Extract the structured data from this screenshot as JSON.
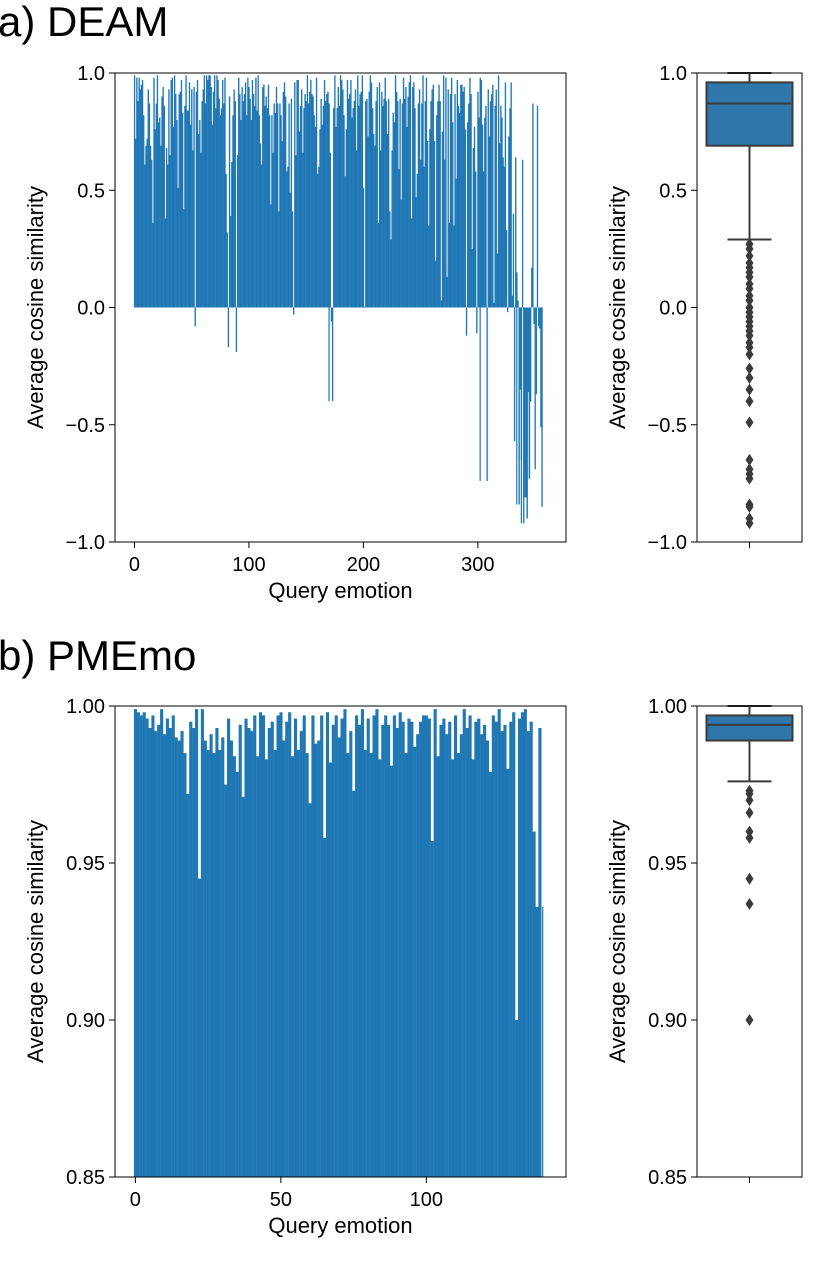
{
  "panels": {
    "a": {
      "title": "a) DEAM"
    },
    "b": {
      "title": "b) PMEmo"
    }
  },
  "colors": {
    "bar": "#1f77b4",
    "box": "#2f77ab",
    "box_line": "#3b3b3b"
  },
  "chart_data": [
    {
      "id": "deam-bar",
      "type": "bar",
      "panel": "a",
      "xlabel": "Query emotion",
      "ylabel": "Average cosine similarity",
      "xlim": [
        -17,
        377
      ],
      "ylim": [
        -1.0,
        1.0
      ],
      "xticks": [
        0,
        100,
        200,
        300
      ],
      "yticks": [
        -1.0,
        -0.5,
        0.0,
        0.5,
        1.0
      ],
      "ytick_labels": [
        "−1.0",
        "−0.5",
        "0.0",
        "0.5",
        "1.0"
      ],
      "x_start": 0,
      "values": [
        0.99,
        0.72,
        0.98,
        0.88,
        0.98,
        0.93,
        0.95,
        0.97,
        0.82,
        0.61,
        0.69,
        0.72,
        0.93,
        0.87,
        0.69,
        0.63,
        0.36,
        0.98,
        0.76,
        0.87,
        0.99,
        0.79,
        0.81,
        0.69,
        0.9,
        0.94,
        0.86,
        0.38,
        0.68,
        0.61,
        0.93,
        0.65,
        0.97,
        0.98,
        0.77,
        0.99,
        0.91,
        0.8,
        0.51,
        0.91,
        0.92,
        0.97,
        0.83,
        0.42,
        0.86,
        0.99,
        0.84,
        0.84,
        0.96,
        0.78,
        0.93,
        0.67,
        0.94,
        -0.08,
        0.92,
        0.97,
        0.74,
        0.8,
        0.66,
        0.88,
        0.93,
        0.99,
        0.87,
        0.99,
        0.97,
        0.99,
        0.99,
        0.94,
        0.78,
        0.92,
        0.99,
        0.85,
        0.99,
        0.97,
        0.89,
        0.82,
        0.85,
        0.97,
        0.87,
        0.98,
        0.57,
        0.32,
        -0.17,
        0.9,
        0.39,
        0.62,
        0.82,
        0.93,
        0.88,
        -0.19,
        0.65,
        0.98,
        0.91,
        0.8,
        0.94,
        0.88,
        0.91,
        0.96,
        0.82,
        0.98,
        0.94,
        0.89,
        0.8,
        0.97,
        0.91,
        0.86,
        0.98,
        0.84,
        0.99,
        0.82,
        0.7,
        0.61,
        0.94,
        0.95,
        0.86,
        0.9,
        0.85,
        0.95,
        0.82,
        0.44,
        0.82,
        0.66,
        0.87,
        0.83,
        0.94,
        0.87,
        0.41,
        0.87,
        0.82,
        0.71,
        0.92,
        0.96,
        0.9,
        0.58,
        0.6,
        0.87,
        0.49,
        0.89,
        0.41,
        -0.03,
        0.96,
        0.65,
        0.97,
        0.97,
        0.75,
        0.86,
        0.93,
        0.66,
        0.85,
        0.91,
        0.88,
        0.99,
        0.87,
        0.92,
        0.97,
        0.91,
        0.9,
        0.82,
        0.77,
        0.98,
        0.57,
        0.6,
        0.76,
        0.89,
        0.78,
        0.86,
        0.97,
        0.88,
        0.91,
        0.92,
        0.87,
        0.66,
        -0.06,
        -0.4,
        0.85,
        0.99,
        0.77,
        0.85,
        0.94,
        0.86,
        0.99,
        0.97,
        0.93,
        0.82,
        0.56,
        0.76,
        0.97,
        0.89,
        0.91,
        0.97,
        0.81,
        0.85,
        0.88,
        0.93,
        0.67,
        0.99,
        0.86,
        0.91,
        0.92,
        0.99,
        0.51,
        0.0,
        0.88,
        0.89,
        0.73,
        0.92,
        0.99,
        0.96,
        0.85,
        0.74,
        0.69,
        0.88,
        0.94,
        0.36,
        0.96,
        0.67,
        0.92,
        0.86,
        0.89,
        0.98,
        0.88,
        0.74,
        0.89,
        0.41,
        0.29,
        0.67,
        0.83,
        0.79,
        0.99,
        0.92,
        0.88,
        0.59,
        0.89,
        0.46,
        0.87,
        0.98,
        0.89,
        0.94,
        0.77,
        0.9,
        0.96,
        0.99,
        0.38,
        0.94,
        0.96,
        0.85,
        0.47,
        0.57,
        0.87,
        0.93,
        0.63,
        0.87,
        0.99,
        0.6,
        0.88,
        0.98,
        0.71,
        0.35,
        0.76,
        0.88,
        0.93,
        0.95,
        0.71,
        0.2,
        0.82,
        0.88,
        0.95,
        0.88,
        0.03,
        0.75,
        0.99,
        0.63,
        0.98,
        0.13,
        0.93,
        0.36,
        0.91,
        0.98,
        0.79,
        0.35,
        0.91,
        0.55,
        0.97,
        0.86,
        0.83,
        0.95,
        0.95,
        0.92,
        0.94,
        0.76,
        -0.12,
        0.79,
        0.87,
        0.98,
        0.91,
        0.25,
        0.68,
        0.77,
        0.58,
        -0.11,
        0.92,
        0.81,
        0.98,
        0.97,
        0.78,
        0.58,
        0.81,
        0.86,
        -0.74,
        0.93,
        0.73,
        0.88,
        0.91,
        0.95,
        0.02,
        0.86,
        0.93,
        0.23,
        0.99,
        0.7,
        0.86,
        0.81,
        0.64,
        0.6,
        0.96,
        0.33,
        -0.02,
        0.73,
        0.85,
        0.96,
        0.05,
        0.4,
        -0.57,
        0.64,
        0.15,
        0.03,
        -0.84,
        -0.35,
        -0.65,
        0.63,
        -0.92,
        -0.7,
        -0.81,
        -0.9,
        -0.36,
        -0.73,
        -0.4,
        0.17,
        0.87,
        -0.07,
        -0.69,
        -0.37,
        0.86,
        -0.08,
        -0.09,
        -0.51,
        -0.85
      ],
      "highlights": [
        {
          "x": 334,
          "y": -0.84
        },
        {
          "x": 336,
          "y": -0.65
        },
        {
          "x": 338,
          "y": -0.92
        },
        {
          "x": 341,
          "y": -0.81
        },
        {
          "x": 343,
          "y": -0.9
        },
        {
          "x": 345,
          "y": -0.73
        },
        {
          "x": 346,
          "y": -0.4
        },
        {
          "x": 302,
          "y": -0.74
        },
        {
          "x": 170,
          "y": -0.4
        }
      ]
    },
    {
      "id": "deam-box",
      "type": "box",
      "panel": "a",
      "ylabel": "Average cosine similarity",
      "ylim": [
        -1.0,
        1.0
      ],
      "yticks": [
        -1.0,
        -0.5,
        0.0,
        0.5,
        1.0
      ],
      "ytick_labels": [
        "−1.0",
        "−0.5",
        "0.0",
        "0.5",
        "1.0"
      ],
      "whislo": 0.29,
      "q1": 0.69,
      "median": 0.87,
      "q3": 0.96,
      "whishi": 1.0,
      "fliers": [
        0.27,
        0.25,
        0.22,
        0.19,
        0.17,
        0.15,
        0.13,
        0.1,
        0.08,
        0.05,
        0.03,
        0.0,
        -0.02,
        -0.04,
        -0.06,
        -0.08,
        -0.1,
        -0.12,
        -0.15,
        -0.17,
        -0.2,
        -0.26,
        -0.3,
        -0.35,
        -0.4,
        -0.49,
        -0.65,
        -0.69,
        -0.71,
        -0.73,
        -0.84,
        -0.85,
        -0.9,
        -0.92
      ]
    },
    {
      "id": "pmemo-bar",
      "type": "bar",
      "panel": "b",
      "xlabel": "Query emotion",
      "ylabel": "Average cosine similarity",
      "xlim": [
        -7,
        148
      ],
      "ylim": [
        0.85,
        1.0
      ],
      "xticks": [
        0,
        50,
        100
      ],
      "yticks": [
        0.85,
        0.9,
        0.95,
        1.0
      ],
      "ytick_labels": [
        "0.85",
        "0.90",
        "0.95",
        "1.00"
      ],
      "x_start": 0,
      "values": [
        0.999,
        0.998,
        0.997,
        0.998,
        0.996,
        0.993,
        0.997,
        0.992,
        0.994,
        0.999,
        0.991,
        0.996,
        0.993,
        0.997,
        0.99,
        0.989,
        0.992,
        0.985,
        0.972,
        0.995,
        0.993,
        0.999,
        0.945,
        0.999,
        0.989,
        0.986,
        0.991,
        0.985,
        0.993,
        0.986,
        0.99,
        0.975,
        0.996,
        0.989,
        0.984,
        0.979,
        0.994,
        0.971,
        0.996,
        0.993,
        0.992,
        0.997,
        0.984,
        0.998,
        0.997,
        0.983,
        0.993,
        0.995,
        0.986,
        0.997,
        0.998,
        0.989,
        0.995,
        0.998,
        0.984,
        0.996,
        0.986,
        0.992,
        0.997,
        0.985,
        0.969,
        0.997,
        0.988,
        0.989,
        0.997,
        0.958,
        0.998,
        0.982,
        0.994,
        0.997,
        0.99,
        0.996,
        0.999,
        0.985,
        0.992,
        0.973,
        0.997,
        0.994,
        0.999,
        0.986,
        0.996,
        0.985,
        0.997,
        0.999,
        0.983,
        0.994,
        0.997,
        0.994,
        0.981,
        0.997,
        0.993,
        0.998,
        0.995,
        0.985,
        0.996,
        0.995,
        0.987,
        0.991,
        0.995,
        0.997,
        0.997,
        0.996,
        0.957,
        0.999,
        0.984,
        0.994,
        0.996,
        0.991,
        0.995,
        0.983,
        0.997,
        0.985,
        0.991,
        0.999,
        0.993,
        0.997,
        0.983,
        0.995,
        0.996,
        0.991,
        0.994,
        0.989,
        0.979,
        0.997,
        0.995,
        0.999,
        0.992,
        0.994,
        0.98,
        0.995,
        0.998,
        0.9,
        0.996,
        0.998,
        0.999,
        0.992,
        0.995,
        0.96,
        0.936,
        0.993
      ],
      "highlights": [
        {
          "x": 22,
          "y": 0.945
        },
        {
          "x": 131,
          "y": 0.9
        },
        {
          "x": 140,
          "y": 0.936
        }
      ]
    },
    {
      "id": "pmemo-box",
      "type": "box",
      "panel": "b",
      "ylabel": "Average cosine similarity",
      "ylim": [
        0.85,
        1.0
      ],
      "yticks": [
        0.85,
        0.9,
        0.95,
        1.0
      ],
      "ytick_labels": [
        "0.85",
        "0.90",
        "0.95",
        "1.00"
      ],
      "whislo": 0.976,
      "q1": 0.989,
      "median": 0.994,
      "q3": 0.997,
      "whishi": 1.0,
      "fliers": [
        0.973,
        0.972,
        0.97,
        0.966,
        0.96,
        0.958,
        0.945,
        0.937,
        0.9
      ]
    }
  ]
}
